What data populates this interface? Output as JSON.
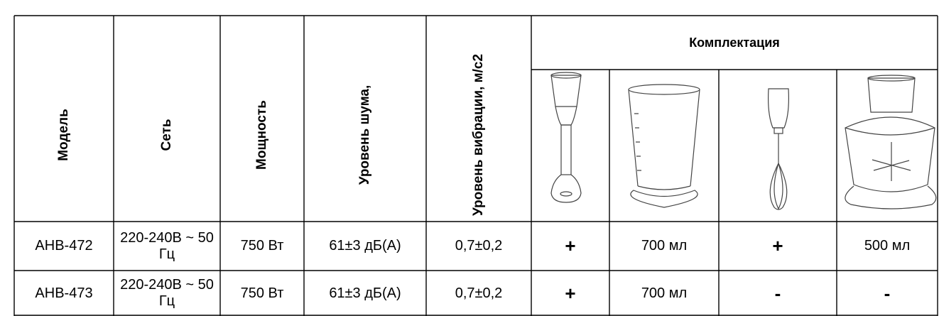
{
  "header": {
    "columns": [
      "Модель",
      "Сеть",
      "Мощность",
      "Уровень шума,",
      "Уровень вибрации, м/с2"
    ],
    "group": "Комплектация"
  },
  "rows": [
    [
      "АНВ-472",
      "220-240В ~ 50 Гц",
      "750 Вт",
      "61±3 дБ(А)",
      "0,7±0,2",
      "+",
      "700 мл",
      "+",
      "500 мл"
    ],
    [
      "АНВ-473",
      "220-240В ~ 50 Гц",
      "750 Вт",
      "61±3 дБ(А)",
      "0,7±0,2",
      "+",
      "700 мл",
      "-",
      "-"
    ]
  ]
}
